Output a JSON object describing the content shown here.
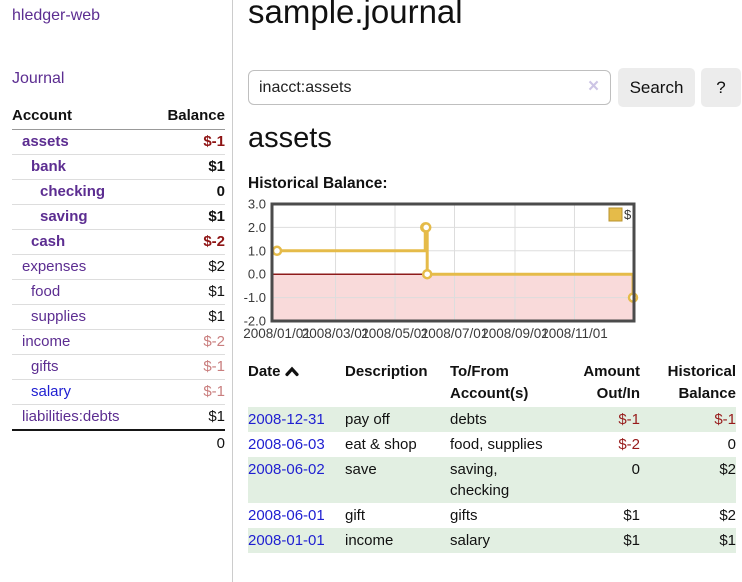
{
  "sidebar": {
    "app_title": "hledger-web",
    "journal_link": "Journal",
    "accounts": {
      "headers": {
        "account": "Account",
        "balance": "Balance"
      },
      "rows": [
        {
          "name": "assets",
          "balance": "$-1",
          "level": 1,
          "bold": true,
          "link_color": "purple",
          "balance_class": "neg-strong"
        },
        {
          "name": "bank",
          "balance": "$1",
          "level": 2,
          "bold": true,
          "link_color": "purple",
          "balance_class": ""
        },
        {
          "name": "checking",
          "balance": "0",
          "level": 3,
          "bold": true,
          "link_color": "purple",
          "balance_class": ""
        },
        {
          "name": "saving",
          "balance": "$1",
          "level": 3,
          "bold": true,
          "link_color": "purple",
          "balance_class": ""
        },
        {
          "name": "cash",
          "balance": "$-2",
          "level": 2,
          "bold": true,
          "link_color": "purple",
          "balance_class": "neg-strong"
        },
        {
          "name": "expenses",
          "balance": "$2",
          "level": 1,
          "bold": false,
          "link_color": "purple",
          "balance_class": ""
        },
        {
          "name": "food",
          "balance": "$1",
          "level": 2,
          "bold": false,
          "link_color": "purple",
          "balance_class": ""
        },
        {
          "name": "supplies",
          "balance": "$1",
          "level": 2,
          "bold": false,
          "link_color": "purple",
          "balance_class": ""
        },
        {
          "name": "income",
          "balance": "$-2",
          "level": 1,
          "bold": false,
          "link_color": "purple",
          "balance_class": "neg-soft"
        },
        {
          "name": "gifts",
          "balance": "$-1",
          "level": 2,
          "bold": false,
          "link_color": "purple",
          "balance_class": "neg-soft"
        },
        {
          "name": "salary",
          "balance": "$-1",
          "level": 2,
          "bold": false,
          "link_color": "blue",
          "balance_class": "neg-soft"
        },
        {
          "name": "liabilities:debts",
          "balance": "$1",
          "level": 1,
          "bold": false,
          "link_color": "purple",
          "balance_class": ""
        }
      ],
      "total": "0"
    }
  },
  "header": {
    "title": "sample.journal"
  },
  "search": {
    "value": "inacct:assets",
    "clear_icon": "×",
    "button_label": "Search",
    "help_label": "?"
  },
  "account_page": {
    "heading": "assets",
    "chart_label": "Historical Balance:"
  },
  "chart_data": {
    "type": "line",
    "step": true,
    "title": "Historical Balance:",
    "series": [
      {
        "name": "$",
        "points": [
          [
            "2008-01-01",
            1
          ],
          [
            "2008-06-01",
            2
          ],
          [
            "2008-06-02",
            2
          ],
          [
            "2008-06-03",
            0
          ],
          [
            "2008-12-31",
            -1
          ]
        ]
      }
    ],
    "ylim": [
      -2,
      3
    ],
    "yticks": [
      3.0,
      2.0,
      1.0,
      0.0,
      -1.0,
      -2.0
    ],
    "ytick_labels": [
      "3.0",
      "2.0",
      "1.0",
      "0.0",
      "-1.0",
      "-2.0"
    ],
    "xrange": [
      "2008-01-01",
      "2008-12-31"
    ],
    "xticks": [
      "2008-01-01",
      "2008-03-01",
      "2008-05-01",
      "2008-07-01",
      "2008-09-01",
      "2008-11-01"
    ],
    "xtick_labels": [
      "2008/01/01",
      "2008/03/01",
      "2008/05/01",
      "2008/07/01",
      "2008/09/01",
      "2008/11/01"
    ],
    "legend": {
      "label": "$",
      "position": "top-right"
    },
    "grid": true,
    "line_color": "#e5bb49",
    "negative_region_color": "#f9dada",
    "zero_line_color": "#8e1b1b"
  },
  "transactions": {
    "columns": {
      "date": "Date",
      "description": "Description",
      "accounts": "To/From Account(s)",
      "amount": "Amount Out/In",
      "balance": "Historical Balance"
    },
    "rows": [
      {
        "date": "2008-12-31",
        "description": "pay off",
        "accounts": "debts",
        "amount": "$-1",
        "balance": "$-1"
      },
      {
        "date": "2008-06-03",
        "description": "eat & shop",
        "accounts": "food, supplies",
        "amount": "$-2",
        "balance": "0"
      },
      {
        "date": "2008-06-02",
        "description": "save",
        "accounts": "saving, checking",
        "amount": "0",
        "balance": "$2"
      },
      {
        "date": "2008-06-01",
        "description": "gift",
        "accounts": "gifts",
        "amount": "$1",
        "balance": "$2"
      },
      {
        "date": "2008-01-01",
        "description": "income",
        "accounts": "salary",
        "amount": "$1",
        "balance": "$1"
      }
    ]
  },
  "colors": {
    "link_purple": "#5c2d91",
    "link_blue": "#1f1fd1",
    "negative_strong": "#8e1414",
    "negative_soft": "#c97e7e",
    "table_negative": "#971b1b",
    "row_stripe_green": "#e2efe2",
    "chart_line_gold": "#e5bb49",
    "chart_negative_pink": "#f9dada",
    "chart_zero_line": "#8e1b1b"
  }
}
